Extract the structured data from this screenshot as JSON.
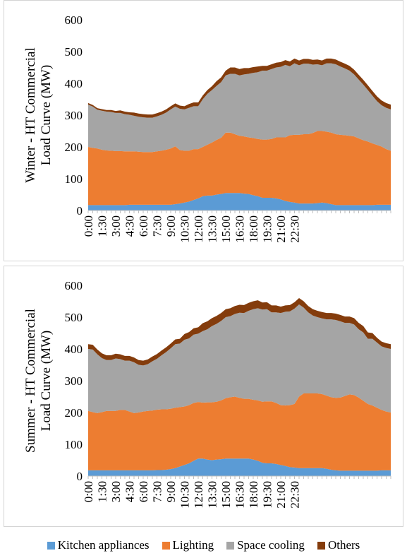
{
  "chart_data": [
    {
      "type": "area",
      "stacked": true,
      "ylabel": "Winter - HT Commercial Load Curve (MW)",
      "ylabel_lines": [
        "Winter - HT Commercial",
        "Load Curve (MW)"
      ],
      "ylim": [
        0,
        600
      ],
      "yticks": [
        "0",
        "100",
        "200",
        "300",
        "400",
        "500",
        "600"
      ],
      "x_tick_labels": [
        "0:00",
        "1:30",
        "3:00",
        "4:30",
        "6:00",
        "7:30",
        "9:00",
        "10:30",
        "12:00",
        "13:30",
        "15:00",
        "16:30",
        "18:00",
        "19:30",
        "21:00",
        "22:30"
      ],
      "x_points_per_tick": 3,
      "series": [
        {
          "name": "Kitchen appliances",
          "color": "#5B9BD5",
          "values": [
            17,
            17,
            17,
            17,
            17,
            17,
            17,
            17,
            17,
            18,
            18,
            18,
            18,
            18,
            18,
            18,
            18,
            18,
            18,
            20,
            22,
            25,
            28,
            33,
            38,
            45,
            47,
            47,
            50,
            52,
            55,
            55,
            55,
            55,
            53,
            52,
            48,
            45,
            40,
            40,
            40,
            38,
            35,
            30,
            27,
            25,
            22,
            22,
            22,
            22,
            23,
            25,
            23,
            20,
            17,
            17,
            17,
            17,
            17,
            17,
            17,
            17,
            17,
            18,
            18,
            18,
            18
          ]
        },
        {
          "name": "Lighting",
          "color": "#ED7D31",
          "values": [
            183,
            180,
            178,
            174,
            172,
            171,
            170,
            170,
            169,
            168,
            168,
            167,
            166,
            166,
            166,
            168,
            170,
            173,
            177,
            182,
            168,
            163,
            160,
            160,
            155,
            155,
            160,
            167,
            172,
            177,
            190,
            190,
            185,
            180,
            180,
            178,
            180,
            180,
            183,
            183,
            185,
            192,
            195,
            200,
            210,
            213,
            216,
            218,
            218,
            222,
            227,
            225,
            225,
            225,
            223,
            221,
            220,
            218,
            216,
            210,
            204,
            200,
            194,
            188,
            183,
            175,
            170
          ]
        },
        {
          "name": "Space cooling",
          "color": "#A5A5A5",
          "values": [
            133,
            130,
            122,
            123,
            122,
            122,
            120,
            120,
            117,
            115,
            112,
            110,
            109,
            108,
            108,
            110,
            113,
            117,
            123,
            125,
            130,
            130,
            135,
            135,
            135,
            150,
            160,
            165,
            170,
            175,
            180,
            185,
            190,
            190,
            195,
            200,
            205,
            210,
            217,
            217,
            220,
            220,
            222,
            228,
            217,
            225,
            219,
            222,
            222,
            215,
            210,
            207,
            215,
            218,
            220,
            215,
            210,
            205,
            195,
            185,
            175,
            162,
            150,
            138,
            130,
            130,
            130
          ]
        },
        {
          "name": "Others",
          "color": "#843C0C",
          "values": [
            5,
            5,
            5,
            5,
            5,
            6,
            6,
            8,
            8,
            8,
            10,
            10,
            10,
            10,
            10,
            10,
            10,
            10,
            10,
            10,
            10,
            10,
            12,
            12,
            12,
            12,
            12,
            12,
            15,
            15,
            15,
            20,
            20,
            20,
            20,
            18,
            18,
            18,
            15,
            15,
            15,
            15,
            15,
            15,
            15,
            15,
            15,
            15,
            15,
            15,
            15,
            15,
            15,
            15,
            15,
            15,
            15,
            15,
            15,
            15,
            15,
            15,
            15,
            15,
            15,
            15,
            15
          ]
        }
      ]
    },
    {
      "type": "area",
      "stacked": true,
      "ylabel": "Summer - HT Commercial Load Curve (MW)",
      "ylabel_lines": [
        "Summer - HT Commercial",
        "Load Curve (MW)"
      ],
      "ylim": [
        0,
        600
      ],
      "yticks": [
        "0",
        "100",
        "200",
        "300",
        "400",
        "500",
        "600"
      ],
      "x_tick_labels": [
        "0:00",
        "1:30",
        "3:00",
        "4:30",
        "6:00",
        "7:30",
        "9:00",
        "10:30",
        "12:00",
        "13:30",
        "15:00",
        "16:30",
        "18:00",
        "19:30",
        "21:00",
        "22:30"
      ],
      "x_points_per_tick": 3,
      "series": [
        {
          "name": "Kitchen appliances",
          "color": "#5B9BD5",
          "values": [
            18,
            18,
            18,
            18,
            18,
            18,
            18,
            18,
            18,
            18,
            18,
            18,
            18,
            18,
            18,
            19,
            19,
            20,
            22,
            25,
            30,
            35,
            40,
            48,
            55,
            55,
            52,
            50,
            52,
            53,
            55,
            55,
            55,
            55,
            55,
            55,
            52,
            48,
            42,
            40,
            40,
            38,
            35,
            32,
            28,
            27,
            25,
            25,
            25,
            25,
            25,
            25,
            23,
            20,
            18,
            17,
            17,
            17,
            17,
            17,
            17,
            17,
            17,
            17,
            18,
            18,
            18
          ]
        },
        {
          "name": "Lighting",
          "color": "#ED7D31",
          "values": [
            187,
            183,
            180,
            183,
            187,
            187,
            187,
            190,
            190,
            185,
            180,
            182,
            185,
            187,
            188,
            190,
            191,
            190,
            190,
            190,
            187,
            184,
            183,
            182,
            178,
            176,
            180,
            182,
            182,
            185,
            190,
            193,
            195,
            191,
            188,
            188,
            188,
            190,
            192,
            195,
            195,
            192,
            188,
            190,
            195,
            200,
            225,
            235,
            235,
            235,
            235,
            233,
            230,
            228,
            228,
            230,
            235,
            240,
            238,
            230,
            220,
            210,
            205,
            198,
            190,
            185,
            182
          ]
        },
        {
          "name": "Space cooling",
          "color": "#A5A5A5",
          "values": [
            195,
            197,
            185,
            170,
            160,
            160,
            165,
            160,
            155,
            160,
            160,
            150,
            145,
            147,
            155,
            160,
            170,
            180,
            190,
            200,
            200,
            210,
            210,
            215,
            215,
            225,
            230,
            240,
            245,
            250,
            255,
            255,
            260,
            268,
            270,
            277,
            285,
            290,
            290,
            290,
            280,
            285,
            290,
            295,
            295,
            300,
            290,
            270,
            255,
            245,
            240,
            238,
            240,
            245,
            245,
            240,
            230,
            225,
            222,
            215,
            215,
            205,
            210,
            205,
            200,
            200,
            200
          ]
        },
        {
          "name": "Others",
          "color": "#843C0C",
          "values": [
            15,
            15,
            15,
            15,
            15,
            15,
            15,
            15,
            15,
            15,
            15,
            15,
            15,
            15,
            15,
            15,
            15,
            15,
            15,
            15,
            15,
            18,
            20,
            20,
            20,
            25,
            25,
            25,
            25,
            25,
            25,
            25,
            25,
            25,
            25,
            25,
            25,
            25,
            22,
            22,
            22,
            22,
            20,
            20,
            20,
            20,
            20,
            20,
            20,
            20,
            20,
            20,
            20,
            20,
            20,
            20,
            20,
            20,
            20,
            20,
            20,
            20,
            18,
            15,
            15,
            15,
            15
          ]
        }
      ]
    }
  ],
  "legend": {
    "items": [
      {
        "label": "Kitchen appliances",
        "color": "#5B9BD5"
      },
      {
        "label": "Lighting",
        "color": "#ED7D31"
      },
      {
        "label": "Space cooling",
        "color": "#A5A5A5"
      },
      {
        "label": "Others",
        "color": "#843C0C"
      }
    ]
  }
}
